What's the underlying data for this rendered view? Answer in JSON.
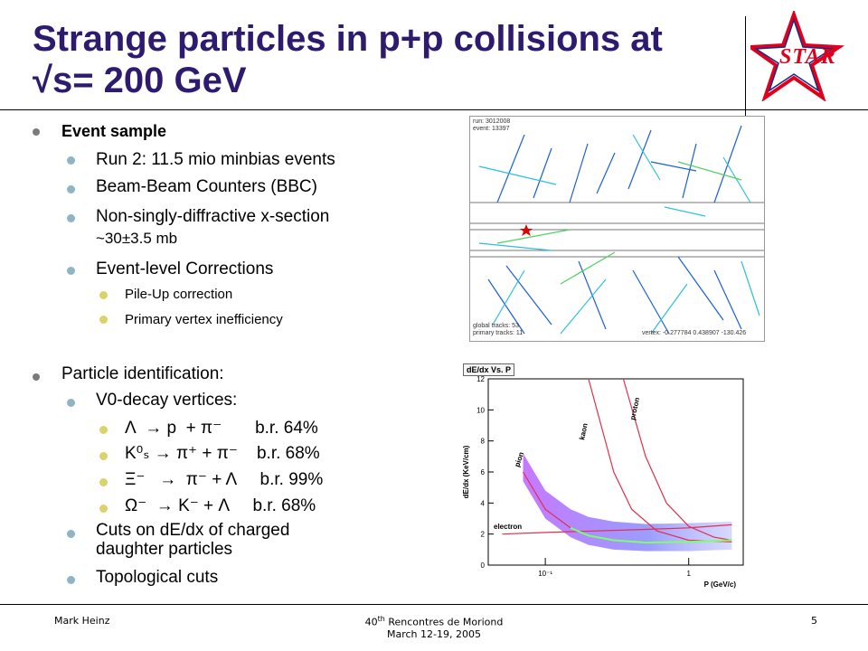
{
  "slide": {
    "title_line1": "Strange particles in p+p collisions at",
    "title_line2": "√s= 200 GeV",
    "logo_text": "STAR"
  },
  "bullets": {
    "event_sample": "Event sample",
    "run2": "Run 2: 11.5 mio minbias events",
    "bbc": "Beam-Beam Counters (BBC)",
    "nsd_1": "Non-singly-diffractive x-section",
    "nsd_2": "~30±3.5 mb",
    "event_level": "Event-level Corrections",
    "pileup": "Pile-Up correction",
    "vertex_ineff": "Primary vertex inefficiency",
    "pid": "Particle identification:",
    "v0": "V0-decay vertices:",
    "lambda_decay": "Λ  → p  + π⁻       b.r. 64%",
    "k0s_parent": "K⁰ₛ",
    "k0s_decay": "→ π⁺ + π⁻    b.r. 68%",
    "xi_decay": "Ξ⁻   →  π⁻ + Λ     b.r. 99%",
    "omega_decay": "Ω⁻  → K⁻ + Λ     b.r. 68%",
    "cuts_1": "Cuts on dE/dx of charged",
    "cuts_2": "daughter particles",
    "topo": "Topological cuts"
  },
  "event_display": {
    "run_label": "run:",
    "run_value": "3012008",
    "event_label": "event:",
    "event_value": "13397",
    "global_tracks": "global tracks:  53",
    "primary_tracks": "primary tracks: 11",
    "vertex": "vertex: -0.277784 0.438907 -130.426"
  },
  "dedx_plot": {
    "title": "dE/dx Vs. P",
    "ylabel": "dE/dx (KeV/cm)",
    "xlabel": "P (GeV/c)",
    "yticks": [
      "0",
      "2",
      "4",
      "6",
      "8",
      "10",
      "12"
    ],
    "xticks": [
      "10⁻¹",
      "1"
    ],
    "band_labels": [
      "pion",
      "kaon",
      "proton",
      "electron"
    ]
  },
  "chart_data": {
    "type": "scatter",
    "title": "dE/dx Vs. P",
    "xlabel": "P (GeV/c)",
    "ylabel": "dE/dx (KeV/cm)",
    "xscale": "log",
    "ylim": [
      0,
      12
    ],
    "series": [
      {
        "name": "pion",
        "x": [
          0.07,
          0.1,
          0.15,
          0.2,
          0.3,
          0.5,
          1.0,
          2.0
        ],
        "y": [
          6.0,
          3.6,
          2.4,
          1.9,
          1.6,
          1.45,
          1.5,
          1.6
        ]
      },
      {
        "name": "kaon",
        "x": [
          0.2,
          0.3,
          0.4,
          0.6,
          1.0,
          2.0
        ],
        "y": [
          12.0,
          6.0,
          3.6,
          2.2,
          1.6,
          1.5
        ]
      },
      {
        "name": "proton",
        "x": [
          0.35,
          0.5,
          0.7,
          1.0,
          1.5,
          2.0
        ],
        "y": [
          12.0,
          7.0,
          4.0,
          2.5,
          1.8,
          1.6
        ]
      },
      {
        "name": "electron",
        "x": [
          0.05,
          0.1,
          0.5,
          1.0,
          2.0
        ],
        "y": [
          2.0,
          2.1,
          2.3,
          2.4,
          2.6
        ]
      }
    ]
  }
}
